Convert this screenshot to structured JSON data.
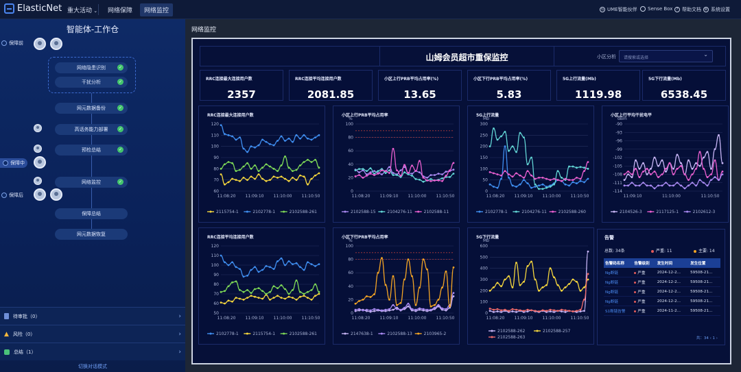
{
  "topbar": {
    "brand": "ElasticNet",
    "nav": [
      {
        "label": "重大活动",
        "has_dropdown": true
      },
      {
        "label": "网络保障"
      },
      {
        "label": "网络监控",
        "selected": true
      }
    ],
    "right": [
      {
        "label": "UME智能伙伴",
        "icon": "dashboard-icon"
      },
      {
        "label": "Sense Box",
        "icon": "box-icon"
      },
      {
        "label": "帮助文档",
        "icon": "help-icon"
      },
      {
        "label": "系统设置",
        "icon": "gear-icon"
      }
    ]
  },
  "sidebar": {
    "title": "智能体-工作仓",
    "stages": [
      {
        "label": "保障前"
      },
      {
        "label": "保障中",
        "current": true
      },
      {
        "label": "保障后"
      }
    ],
    "steps": [
      {
        "label": "网络隐患识别",
        "done": true
      },
      {
        "label": "干扰分析",
        "done": true
      },
      {
        "label": "网元数据备份",
        "done": true
      },
      {
        "label": "高话务能力部署",
        "done": true
      },
      {
        "label": "预检总结",
        "done": true
      },
      {
        "label": "网络监控",
        "done": true
      },
      {
        "label": "保障总结",
        "done": false
      },
      {
        "label": "网元数据恢复",
        "done": false
      }
    ],
    "bottom": [
      {
        "label": "待审批（0）",
        "icon": "approval-icon"
      },
      {
        "label": "风险（0）",
        "icon": "warning-icon"
      },
      {
        "label": "总结（1）",
        "icon": "summary-icon"
      }
    ],
    "switch_label": "切换对话模式"
  },
  "main": {
    "title": "网络监控",
    "dashboard_title": "山姆会员超市重保监控",
    "region_label": "小区分析",
    "region_placeholder": "请搜索或选择"
  },
  "kpis": [
    {
      "label": "RRC连接最大连接用户数",
      "value": "2357"
    },
    {
      "label": "RRC连接平均连接用户数",
      "value": "2081.85"
    },
    {
      "label": "小区上行PRB平均占用率(%)",
      "value": "13.65"
    },
    {
      "label": "小区下行PRB平均占用率(%)",
      "value": "5.83"
    },
    {
      "label": "5G上行流量(Mb)",
      "value": "1119.98"
    },
    {
      "label": "5G下行流量(Mb)",
      "value": "6538.45"
    }
  ],
  "colors": {
    "blue": "#3f8ef0",
    "green": "#7ed957",
    "yellow": "#f5d63d",
    "pink": "#e95fd0",
    "cyan": "#62d5d5",
    "purple": "#a98af2",
    "lavender": "#c7b5f5",
    "red": "#f06a6a",
    "orange": "#f5a524",
    "threshold": "#b23a3a",
    "grid": "#26315e",
    "axis": "#aab4d6"
  },
  "chart_data": [
    {
      "type": "line",
      "title": "RRC连接最大连接用户数",
      "unit": "",
      "ylim": [
        60,
        120
      ],
      "yticks": [
        60,
        70,
        80,
        90,
        100,
        110,
        120
      ],
      "x_ticks": [
        "11:08:20",
        "11:09:10",
        "11:10:00",
        "11:10:50"
      ],
      "series": [
        {
          "name": "2115754-1",
          "color": "yellow",
          "values": [
            75,
            66,
            68,
            71,
            70,
            69,
            72,
            70,
            73,
            71,
            75,
            71,
            69,
            70,
            73,
            72,
            73,
            71,
            69,
            72,
            70,
            74,
            73,
            66,
            71,
            74,
            76
          ]
        },
        {
          "name": "2102778-1",
          "color": "blue",
          "values": [
            119,
            111,
            110,
            109,
            106,
            108,
            98,
            95,
            100,
            99,
            101,
            106,
            104,
            102,
            101,
            105,
            109,
            105,
            107,
            104,
            110,
            107,
            110,
            107,
            106,
            108,
            110
          ]
        },
        {
          "name": "2102588-261",
          "color": "green",
          "values": [
            80,
            84,
            86,
            85,
            78,
            79,
            82,
            85,
            80,
            83,
            78,
            81,
            84,
            82,
            80,
            78,
            83,
            91,
            81,
            78,
            79,
            83,
            86,
            88,
            86,
            88,
            81
          ]
        }
      ]
    },
    {
      "type": "line",
      "title": "小区上行PRB平均占用率",
      "unit": "%",
      "ylim": [
        0,
        100
      ],
      "yticks": [
        0,
        20,
        40,
        60,
        80,
        100
      ],
      "x_ticks": [
        "11:08:20",
        "11:09:10",
        "11:10:00",
        "11:10:50"
      ],
      "thresholds": [
        90,
        80
      ],
      "series": [
        {
          "name": "2102588-15",
          "color": "purple",
          "values": [
            32,
            28,
            31,
            25,
            28,
            30,
            27,
            25,
            30,
            36,
            27,
            25,
            31,
            36,
            27,
            26,
            30,
            28,
            22,
            20,
            24,
            24,
            26,
            25,
            29,
            30,
            32
          ]
        },
        {
          "name": "2104276-11",
          "color": "cyan",
          "values": [
            31,
            33,
            33,
            30,
            34,
            26,
            30,
            33,
            27,
            31,
            24,
            24,
            21,
            28,
            25,
            23,
            18,
            17,
            14,
            16,
            18,
            16,
            17,
            19,
            21,
            21,
            26
          ]
        },
        {
          "name": "2102588-11",
          "color": "pink",
          "values": [
            22,
            24,
            20,
            23,
            26,
            24,
            26,
            31,
            30,
            27,
            63,
            31,
            23,
            39,
            27,
            38,
            30,
            45,
            20,
            16,
            15,
            16,
            16,
            15,
            23,
            31,
            42
          ]
        }
      ]
    },
    {
      "type": "line",
      "title": "5G上行流量",
      "unit": "Mb",
      "ylim": [
        0,
        300
      ],
      "yticks": [
        0,
        50,
        100,
        150,
        200,
        250,
        300
      ],
      "x_ticks": [
        "11:08:20",
        "11:09:10",
        "11:10:00",
        "11:10:50"
      ],
      "series": [
        {
          "name": "2102778-1",
          "color": "blue",
          "values": [
            30,
            20,
            15,
            55,
            200,
            60,
            25,
            20,
            30,
            50,
            35,
            15,
            20,
            25,
            30,
            20,
            25,
            35,
            50,
            45,
            30,
            25,
            40,
            35,
            45,
            40,
            55
          ]
        },
        {
          "name": "2104276-11",
          "color": "cyan",
          "values": [
            200,
            280,
            230,
            245,
            265,
            180,
            200,
            175,
            260,
            240,
            120,
            150,
            30,
            10,
            10,
            15,
            20,
            30,
            90,
            60,
            50,
            110,
            110,
            105,
            108,
            105,
            100
          ]
        },
        {
          "name": "2102588-260",
          "color": "pink",
          "values": [
            85,
            80,
            75,
            70,
            90,
            75,
            65,
            80,
            70,
            60,
            90,
            70,
            55,
            60,
            60,
            55,
            50,
            55,
            50,
            45,
            55,
            50,
            50,
            60,
            55,
            90,
            130
          ]
        }
      ]
    },
    {
      "type": "line",
      "title": "小区上行平均干扰电平",
      "unit": "dBm",
      "ylim": [
        -114,
        -90
      ],
      "yticks": [
        -114,
        -111,
        -108,
        -105,
        -102,
        -99,
        -96,
        -93,
        -90
      ],
      "x_ticks": [
        "11:09:10",
        "11:10:00",
        "11:10:50"
      ],
      "series": [
        {
          "name": "2104526-3",
          "color": "lavender",
          "values": [
            -110,
            -108,
            -109,
            -103,
            -106,
            -104,
            -108,
            -106,
            -102,
            -105,
            -103,
            -107,
            -104,
            -106,
            -101,
            -104,
            -108,
            -103,
            -106,
            -104,
            -105,
            -102,
            -100,
            -106,
            -99,
            -94,
            -104
          ]
        },
        {
          "name": "2117125-1",
          "color": "pink",
          "values": [
            -108,
            -107,
            -108,
            -106,
            -109,
            -107,
            -106,
            -108,
            -107,
            -109,
            -108,
            -106,
            -104,
            -108,
            -106,
            -105,
            -108,
            -110,
            -108,
            -106,
            -100,
            -106,
            -109,
            -108,
            -103,
            -110,
            -107
          ]
        },
        {
          "name": "2102612-3",
          "color": "purple",
          "values": [
            -112,
            -112,
            -111,
            -112,
            -112,
            -111,
            -112,
            -112,
            -113,
            -112,
            -112,
            -111,
            -112,
            -112,
            -111,
            -112,
            -113,
            -112,
            -111,
            -112,
            -110,
            -111,
            -112,
            -110,
            -109,
            -110,
            -108
          ]
        }
      ]
    },
    {
      "type": "line",
      "title": "RRC连接平均连接用户数",
      "unit": "",
      "ylim": [
        50,
        120
      ],
      "yticks": [
        50,
        60,
        70,
        80,
        90,
        100,
        110,
        120
      ],
      "x_ticks": [
        "11:08:20",
        "11:09:10",
        "11:10:00",
        "11:10:50"
      ],
      "series": [
        {
          "name": "2102778-1",
          "color": "blue",
          "values": [
            110,
            103,
            100,
            103,
            98,
            96,
            88,
            89,
            95,
            98,
            93,
            95,
            99,
            98,
            96,
            104,
            107,
            100,
            104,
            101,
            102,
            98,
            95,
            103,
            101,
            99,
            101
          ]
        },
        {
          "name": "2115754-1",
          "color": "yellow",
          "values": [
            61,
            60,
            63,
            62,
            66,
            65,
            64,
            66,
            68,
            67,
            66,
            65,
            69,
            64,
            66,
            68,
            66,
            65,
            67,
            66,
            64,
            67,
            68,
            66,
            64,
            68,
            70
          ]
        },
        {
          "name": "2102588-261",
          "color": "green",
          "values": [
            72,
            73,
            78,
            82,
            83,
            74,
            72,
            74,
            71,
            75,
            76,
            73,
            70,
            72,
            78,
            76,
            79,
            75,
            70,
            74,
            84,
            72,
            70,
            72,
            74,
            80,
            72
          ]
        }
      ]
    },
    {
      "type": "line",
      "title": "小区下行PRB平均占用率",
      "unit": "%",
      "ylim": [
        0,
        100
      ],
      "yticks": [
        0,
        20,
        40,
        60,
        80,
        100
      ],
      "x_ticks": [
        "11:08:20",
        "11:09:10",
        "11:10:00",
        "11:10:50"
      ],
      "thresholds": [
        90,
        80
      ],
      "series": [
        {
          "name": "2147638-1",
          "color": "lavender",
          "values": [
            3,
            4,
            5,
            3,
            2,
            3,
            4,
            3,
            3,
            4,
            5,
            8,
            4,
            6,
            10,
            4,
            3,
            5,
            4,
            3,
            4,
            6,
            10,
            5,
            4,
            8,
            25
          ]
        },
        {
          "name": "2102588-13",
          "color": "purple",
          "values": [
            5,
            6,
            4,
            5,
            4,
            6,
            5,
            4,
            5,
            6,
            12,
            6,
            5,
            8,
            14,
            6,
            5,
            7,
            6,
            5,
            5,
            8,
            12,
            7,
            6,
            12,
            30
          ]
        },
        {
          "name": "2103965-2",
          "color": "orange",
          "values": [
            14,
            18,
            20,
            25,
            24,
            28,
            60,
            82,
            42,
            20,
            55,
            12,
            15,
            50,
            80,
            55,
            12,
            38,
            80,
            65,
            10,
            12,
            20,
            38,
            62,
            10,
            68
          ]
        }
      ]
    },
    {
      "type": "line",
      "title": "5G下行流量",
      "unit": "Mb",
      "ylim": [
        0,
        600
      ],
      "yticks": [
        0,
        100,
        200,
        300,
        400,
        500,
        600
      ],
      "x_ticks": [
        "11:08:20",
        "11:09:10",
        "11:10:00",
        "11:10:50"
      ],
      "series": [
        {
          "name": "2102588-262",
          "color": "lavender",
          "values": [
            20,
            10,
            15,
            10,
            20,
            10,
            15,
            10,
            20,
            10,
            15,
            25,
            15,
            10,
            20,
            10,
            15,
            10,
            20,
            15,
            10,
            20,
            15,
            10,
            15,
            20,
            550
          ]
        },
        {
          "name": "2102588-257",
          "color": "yellow",
          "values": [
            200,
            230,
            270,
            240,
            300,
            330,
            230,
            450,
            250,
            280,
            420,
            460,
            300,
            200,
            230,
            250,
            400,
            320,
            250,
            200,
            230,
            260,
            300,
            280,
            200,
            230,
            300
          ]
        },
        {
          "name": "2102588-263",
          "color": "red",
          "values": [
            40,
            30,
            35,
            25,
            30,
            20,
            35,
            30,
            25,
            20,
            30,
            25,
            20,
            15,
            25,
            20,
            30,
            25,
            20,
            30,
            25,
            20,
            15,
            20,
            30,
            120,
            350
          ]
        }
      ]
    }
  ],
  "alarm": {
    "title": "告警",
    "total": "总数: 34条",
    "severe": "严重: 11",
    "major": "主要: 14",
    "columns": [
      "告警码名称",
      "告警级别",
      "发生时间",
      "发生位置"
    ],
    "rows": [
      [
        "Ng断链",
        "严重",
        "2024-12-2...",
        "59508-21..."
      ],
      [
        "Ng断链",
        "严重",
        "2024-12-2...",
        "59508-21..."
      ],
      [
        "Ng断链",
        "严重",
        "2024-12-2...",
        "59508-21..."
      ],
      [
        "Ng断链",
        "严重",
        "2024-12-2...",
        "59508-21..."
      ],
      [
        "S1断链告警",
        "严重",
        "2024-11-2...",
        "59508-21..."
      ]
    ],
    "pager": "共：34  ‹  1  ›"
  }
}
